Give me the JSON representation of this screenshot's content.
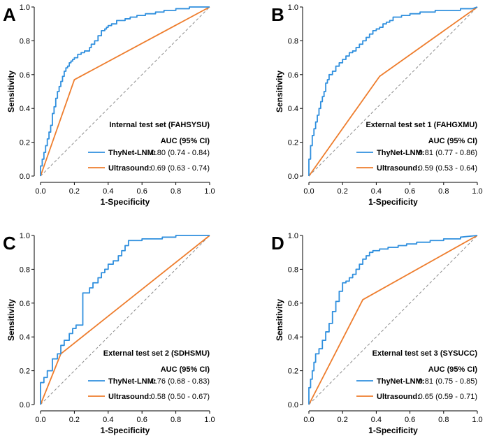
{
  "colors": {
    "roc": "#2f8fde",
    "us": "#ee7d2d",
    "diag": "#8c8c8c"
  },
  "chart_data": [
    {
      "type": "line",
      "panel": "A",
      "xlabel": "1-Specificity",
      "ylabel": "Sensitivity",
      "xlim": [
        0,
        1
      ],
      "ylim": [
        0,
        1
      ],
      "xticks": [
        "0.0",
        "0.2",
        "0.4",
        "0.6",
        "0.8",
        "1.0"
      ],
      "yticks": [
        "0.0",
        "0.2",
        "0.4",
        "0.6",
        "0.8",
        "1.0"
      ],
      "legend": {
        "title": "Internal test set (FAHSYSU)",
        "subtitle": "AUC (95% CI)",
        "entries": [
          {
            "name": "ThyNet-LNM:",
            "value": "0.80 (0.74 - 0.84)"
          },
          {
            "name": "Ultrasound:",
            "value": "0.69 (0.63 - 0.74)"
          }
        ]
      },
      "series": [
        {
          "name": "ThyNet-LNM",
          "x": [
            0.0,
            0.0,
            0.01,
            0.01,
            0.02,
            0.02,
            0.03,
            0.03,
            0.04,
            0.04,
            0.05,
            0.05,
            0.06,
            0.06,
            0.07,
            0.07,
            0.08,
            0.08,
            0.09,
            0.09,
            0.1,
            0.1,
            0.11,
            0.11,
            0.12,
            0.12,
            0.13,
            0.13,
            0.14,
            0.14,
            0.15,
            0.15,
            0.16,
            0.16,
            0.17,
            0.17,
            0.18,
            0.18,
            0.19,
            0.19,
            0.2,
            0.2,
            0.22,
            0.22,
            0.24,
            0.24,
            0.26,
            0.26,
            0.29,
            0.29,
            0.3,
            0.3,
            0.32,
            0.32,
            0.34,
            0.34,
            0.36,
            0.36,
            0.38,
            0.38,
            0.39,
            0.39,
            0.4,
            0.4,
            0.42,
            0.42,
            0.45,
            0.45,
            0.5,
            0.5,
            0.53,
            0.53,
            0.57,
            0.57,
            0.62,
            0.62,
            0.68,
            0.68,
            0.73,
            0.73,
            0.8,
            0.8,
            0.88,
            0.88,
            0.95,
            0.95,
            1.0
          ],
          "y": [
            0.0,
            0.06,
            0.06,
            0.1,
            0.1,
            0.14,
            0.14,
            0.18,
            0.18,
            0.22,
            0.22,
            0.26,
            0.26,
            0.3,
            0.3,
            0.37,
            0.37,
            0.41,
            0.41,
            0.46,
            0.46,
            0.5,
            0.5,
            0.53,
            0.53,
            0.56,
            0.56,
            0.59,
            0.59,
            0.62,
            0.62,
            0.64,
            0.64,
            0.65,
            0.65,
            0.67,
            0.67,
            0.68,
            0.68,
            0.69,
            0.69,
            0.7,
            0.7,
            0.72,
            0.72,
            0.73,
            0.73,
            0.74,
            0.74,
            0.76,
            0.76,
            0.78,
            0.78,
            0.8,
            0.8,
            0.83,
            0.83,
            0.86,
            0.86,
            0.87,
            0.87,
            0.88,
            0.88,
            0.89,
            0.89,
            0.9,
            0.9,
            0.92,
            0.92,
            0.93,
            0.93,
            0.94,
            0.94,
            0.95,
            0.95,
            0.96,
            0.96,
            0.97,
            0.97,
            0.98,
            0.98,
            0.99,
            0.99,
            1.0,
            1.0,
            1.0,
            1.0
          ]
        },
        {
          "name": "Ultrasound",
          "x": [
            0.0,
            0.2,
            1.0
          ],
          "y": [
            0.0,
            0.57,
            1.0
          ]
        },
        {
          "name": "Reference",
          "x": [
            0.0,
            1.0
          ],
          "y": [
            0.0,
            1.0
          ]
        }
      ]
    },
    {
      "type": "line",
      "panel": "B",
      "xlabel": "1-Specificity",
      "ylabel": "Sensitivity",
      "xlim": [
        0,
        1
      ],
      "ylim": [
        0,
        1
      ],
      "xticks": [
        "0.0",
        "0.2",
        "0.4",
        "0.6",
        "0.8",
        "1.0"
      ],
      "yticks": [
        "0.0",
        "0.2",
        "0.4",
        "0.6",
        "0.8",
        "1.0"
      ],
      "legend": {
        "title": "External test set 1 (FAHGXMU)",
        "subtitle": "AUC (95% CI)",
        "entries": [
          {
            "name": "ThyNet-LNM:",
            "value": "0.81 (0.77 - 0.86)"
          },
          {
            "name": "Ultrasound:",
            "value": "0.59 (0.53 - 0.64)"
          }
        ]
      },
      "series": [
        {
          "name": "ThyNet-LNM",
          "x": [
            0.0,
            0.0,
            0.01,
            0.01,
            0.02,
            0.02,
            0.03,
            0.03,
            0.04,
            0.04,
            0.05,
            0.05,
            0.06,
            0.06,
            0.07,
            0.07,
            0.08,
            0.08,
            0.09,
            0.09,
            0.1,
            0.1,
            0.11,
            0.11,
            0.12,
            0.12,
            0.14,
            0.14,
            0.16,
            0.16,
            0.18,
            0.18,
            0.2,
            0.2,
            0.22,
            0.22,
            0.24,
            0.24,
            0.26,
            0.26,
            0.28,
            0.28,
            0.3,
            0.3,
            0.32,
            0.32,
            0.34,
            0.34,
            0.36,
            0.36,
            0.38,
            0.38,
            0.4,
            0.4,
            0.42,
            0.42,
            0.44,
            0.44,
            0.46,
            0.46,
            0.48,
            0.48,
            0.5,
            0.5,
            0.55,
            0.55,
            0.6,
            0.6,
            0.66,
            0.66,
            0.75,
            0.75,
            0.82,
            0.82,
            0.9,
            0.9,
            0.97,
            0.97,
            1.0
          ],
          "y": [
            0.0,
            0.1,
            0.1,
            0.18,
            0.18,
            0.24,
            0.24,
            0.28,
            0.28,
            0.32,
            0.32,
            0.36,
            0.36,
            0.4,
            0.4,
            0.44,
            0.44,
            0.47,
            0.47,
            0.5,
            0.5,
            0.55,
            0.55,
            0.57,
            0.57,
            0.6,
            0.6,
            0.62,
            0.62,
            0.65,
            0.65,
            0.67,
            0.67,
            0.69,
            0.69,
            0.71,
            0.71,
            0.73,
            0.73,
            0.74,
            0.74,
            0.76,
            0.76,
            0.78,
            0.78,
            0.8,
            0.8,
            0.82,
            0.82,
            0.84,
            0.84,
            0.86,
            0.86,
            0.87,
            0.87,
            0.88,
            0.88,
            0.9,
            0.9,
            0.91,
            0.91,
            0.92,
            0.92,
            0.94,
            0.94,
            0.95,
            0.95,
            0.96,
            0.96,
            0.97,
            0.97,
            0.98,
            0.98,
            0.98,
            0.98,
            0.99,
            0.99,
            0.99,
            1.0
          ]
        },
        {
          "name": "Ultrasound",
          "x": [
            0.0,
            0.42,
            1.0
          ],
          "y": [
            0.0,
            0.59,
            1.0
          ]
        },
        {
          "name": "Reference",
          "x": [
            0.0,
            1.0
          ],
          "y": [
            0.0,
            1.0
          ]
        }
      ]
    },
    {
      "type": "line",
      "panel": "C",
      "xlabel": "1-Specificity",
      "ylabel": "Sensitivity",
      "xlim": [
        0,
        1
      ],
      "ylim": [
        0,
        1
      ],
      "xticks": [
        "0.0",
        "0.2",
        "0.4",
        "0.6",
        "0.8",
        "1.0"
      ],
      "yticks": [
        "0.0",
        "0.2",
        "0.4",
        "0.6",
        "0.8",
        "1.0"
      ],
      "legend": {
        "title": "External test set 2 (SDHSMU)",
        "subtitle": "AUC (95% CI)",
        "entries": [
          {
            "name": "ThyNet-LNM:",
            "value": "0.76 (0.68 - 0.83)"
          },
          {
            "name": "Ultrasound:",
            "value": "0.58 (0.50 - 0.67)"
          }
        ]
      },
      "series": [
        {
          "name": "ThyNet-LNM",
          "x": [
            0.0,
            0.0,
            0.02,
            0.02,
            0.04,
            0.04,
            0.07,
            0.07,
            0.1,
            0.1,
            0.12,
            0.12,
            0.14,
            0.14,
            0.17,
            0.17,
            0.19,
            0.19,
            0.21,
            0.21,
            0.25,
            0.25,
            0.29,
            0.29,
            0.31,
            0.31,
            0.34,
            0.34,
            0.36,
            0.36,
            0.38,
            0.38,
            0.4,
            0.4,
            0.43,
            0.43,
            0.46,
            0.46,
            0.48,
            0.48,
            0.5,
            0.5,
            0.52,
            0.52,
            0.55,
            0.55,
            0.6,
            0.6,
            0.69,
            0.69,
            0.72,
            0.72,
            0.8,
            0.8,
            0.88,
            0.88,
            1.0
          ],
          "y": [
            0.0,
            0.13,
            0.13,
            0.16,
            0.16,
            0.2,
            0.2,
            0.27,
            0.27,
            0.3,
            0.3,
            0.35,
            0.35,
            0.38,
            0.38,
            0.42,
            0.42,
            0.45,
            0.45,
            0.47,
            0.47,
            0.66,
            0.66,
            0.69,
            0.69,
            0.72,
            0.72,
            0.75,
            0.75,
            0.78,
            0.78,
            0.8,
            0.8,
            0.83,
            0.83,
            0.85,
            0.85,
            0.88,
            0.88,
            0.91,
            0.91,
            0.94,
            0.94,
            0.97,
            0.97,
            0.97,
            0.97,
            0.98,
            0.98,
            0.98,
            0.98,
            0.99,
            0.99,
            1.0,
            1.0,
            1.0,
            1.0
          ]
        },
        {
          "name": "Ultrasound",
          "x": [
            0.0,
            0.12,
            1.0
          ],
          "y": [
            0.0,
            0.3,
            1.0
          ]
        },
        {
          "name": "Reference",
          "x": [
            0.0,
            1.0
          ],
          "y": [
            0.0,
            1.0
          ]
        }
      ]
    },
    {
      "type": "line",
      "panel": "D",
      "xlabel": "1-Specificity",
      "ylabel": "Sensitivity",
      "xlim": [
        0,
        1
      ],
      "ylim": [
        0,
        1
      ],
      "xticks": [
        "0.0",
        "0.2",
        "0.4",
        "0.6",
        "0.8",
        "1.0"
      ],
      "yticks": [
        "0.0",
        "0.2",
        "0.4",
        "0.6",
        "0.8",
        "1.0"
      ],
      "legend": {
        "title": "External test set 3 (SYSUCC)",
        "subtitle": "AUC (95% CI)",
        "entries": [
          {
            "name": "ThyNet-LNM:",
            "value": "0.81 (0.75 - 0.85)"
          },
          {
            "name": "Ultrasound:",
            "value": "0.65 (0.59 - 0.71)"
          }
        ]
      },
      "series": [
        {
          "name": "ThyNet-LNM",
          "x": [
            0.0,
            0.0,
            0.01,
            0.01,
            0.02,
            0.02,
            0.03,
            0.03,
            0.04,
            0.04,
            0.06,
            0.06,
            0.08,
            0.08,
            0.1,
            0.1,
            0.12,
            0.12,
            0.14,
            0.14,
            0.16,
            0.16,
            0.18,
            0.18,
            0.2,
            0.2,
            0.22,
            0.22,
            0.24,
            0.24,
            0.26,
            0.26,
            0.28,
            0.28,
            0.3,
            0.3,
            0.32,
            0.32,
            0.34,
            0.34,
            0.36,
            0.36,
            0.38,
            0.38,
            0.42,
            0.42,
            0.47,
            0.47,
            0.53,
            0.53,
            0.58,
            0.58,
            0.64,
            0.64,
            0.72,
            0.72,
            0.8,
            0.8,
            0.9,
            0.9,
            1.0
          ],
          "y": [
            0.0,
            0.1,
            0.1,
            0.15,
            0.15,
            0.2,
            0.2,
            0.25,
            0.25,
            0.3,
            0.3,
            0.33,
            0.33,
            0.38,
            0.38,
            0.43,
            0.43,
            0.48,
            0.48,
            0.55,
            0.55,
            0.61,
            0.61,
            0.67,
            0.67,
            0.72,
            0.72,
            0.73,
            0.73,
            0.75,
            0.75,
            0.77,
            0.77,
            0.8,
            0.8,
            0.83,
            0.83,
            0.86,
            0.86,
            0.88,
            0.88,
            0.9,
            0.9,
            0.91,
            0.91,
            0.92,
            0.92,
            0.93,
            0.93,
            0.94,
            0.94,
            0.95,
            0.95,
            0.96,
            0.96,
            0.97,
            0.97,
            0.98,
            0.98,
            0.99,
            1.0
          ]
        },
        {
          "name": "Ultrasound",
          "x": [
            0.0,
            0.32,
            1.0
          ],
          "y": [
            0.0,
            0.62,
            1.0
          ]
        },
        {
          "name": "Reference",
          "x": [
            0.0,
            1.0
          ],
          "y": [
            0.0,
            1.0
          ]
        }
      ]
    }
  ]
}
